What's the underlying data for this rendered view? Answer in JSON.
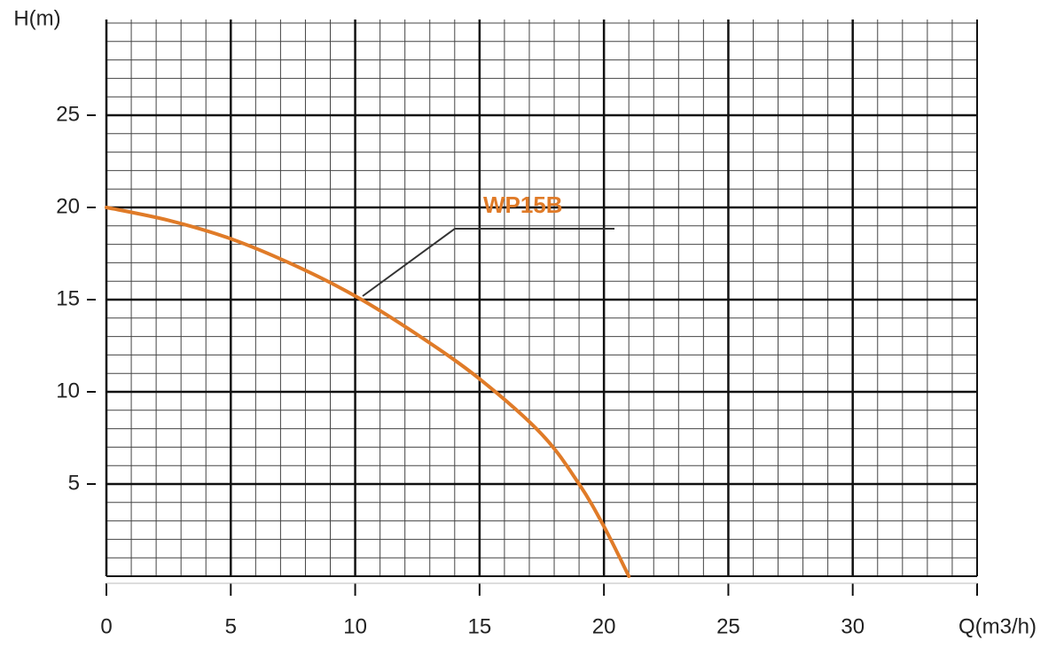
{
  "chart_data": {
    "type": "line",
    "x_label": "Q(m3/h)",
    "y_label": "H(m)",
    "x": [
      0,
      2.5,
      5,
      7.5,
      10,
      12.5,
      15,
      17.5,
      19,
      20,
      21
    ],
    "series": [
      {
        "name": "WP15B",
        "color": "#e07b28",
        "values": [
          20,
          19.3,
          18.3,
          16.9,
          15.2,
          13.1,
          10.7,
          7.7,
          5,
          2.7,
          0
        ]
      }
    ],
    "xlim": [
      0,
      35
    ],
    "xticks": [
      0,
      5,
      10,
      15,
      20,
      25,
      30
    ],
    "ylim": [
      0,
      30
    ],
    "yticks": [
      5,
      10,
      15,
      20,
      25
    ],
    "grid": true
  }
}
